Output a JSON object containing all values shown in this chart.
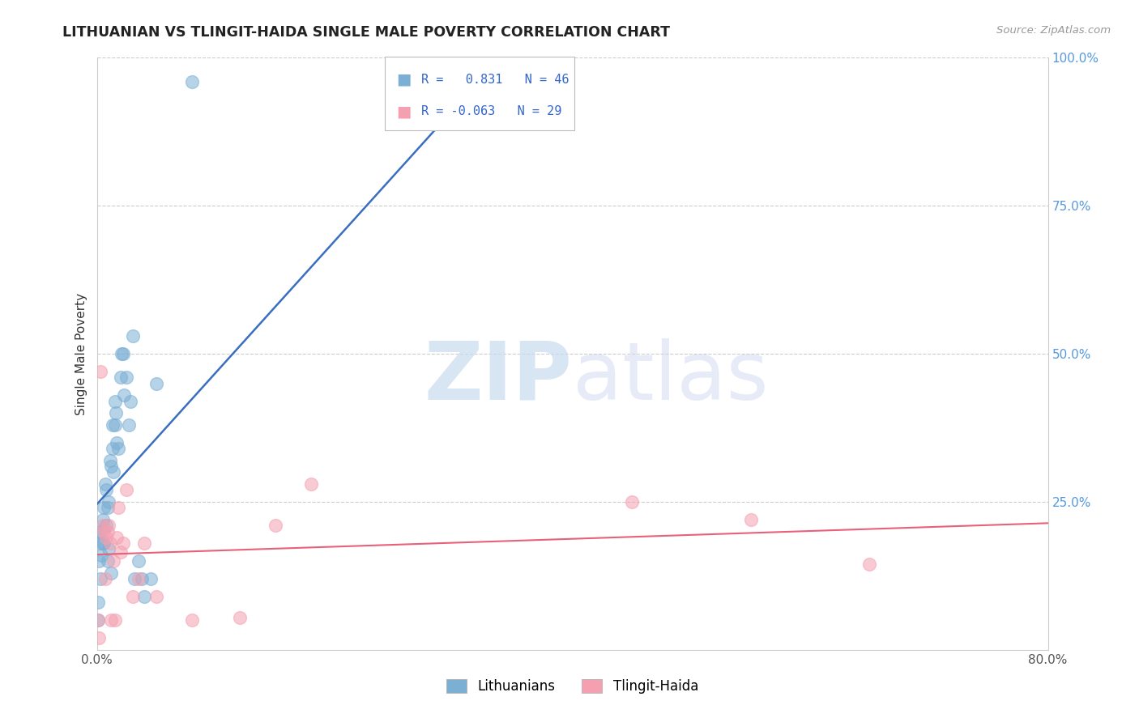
{
  "title": "LITHUANIAN VS TLINGIT-HAIDA SINGLE MALE POVERTY CORRELATION CHART",
  "source": "Source: ZipAtlas.com",
  "ylabel": "Single Male Poverty",
  "blue_R": 0.831,
  "blue_N": 46,
  "pink_R": -0.063,
  "pink_N": 29,
  "blue_color": "#7BAFD4",
  "pink_color": "#F4A0B0",
  "blue_line_color": "#3A6EC0",
  "pink_line_color": "#E8607A",
  "legend_label_blue": "Lithuanians",
  "legend_label_pink": "Tlingit-Haida",
  "xlim": [
    0.0,
    0.8
  ],
  "ylim": [
    0.0,
    1.0
  ],
  "xticks": [
    0.0,
    0.1,
    0.2,
    0.3,
    0.4,
    0.5,
    0.6,
    0.7,
    0.8
  ],
  "xticklabels": [
    "0.0%",
    "",
    "",
    "",
    "",
    "",
    "",
    "",
    "80.0%"
  ],
  "yticks_right": [
    0.25,
    0.5,
    0.75,
    1.0
  ],
  "yticklabels_right": [
    "25.0%",
    "50.0%",
    "75.0%",
    "100.0%"
  ],
  "blue_x": [
    0.001,
    0.001,
    0.002,
    0.002,
    0.003,
    0.003,
    0.004,
    0.004,
    0.005,
    0.005,
    0.006,
    0.006,
    0.007,
    0.008,
    0.008,
    0.009,
    0.009,
    0.01,
    0.01,
    0.011,
    0.012,
    0.012,
    0.013,
    0.013,
    0.014,
    0.015,
    0.015,
    0.016,
    0.017,
    0.018,
    0.02,
    0.021,
    0.022,
    0.023,
    0.025,
    0.027,
    0.028,
    0.03,
    0.032,
    0.035,
    0.038,
    0.04,
    0.045,
    0.05,
    0.08,
    0.38
  ],
  "blue_y": [
    0.05,
    0.08,
    0.15,
    0.2,
    0.12,
    0.18,
    0.16,
    0.2,
    0.18,
    0.22,
    0.18,
    0.24,
    0.28,
    0.21,
    0.27,
    0.15,
    0.24,
    0.17,
    0.25,
    0.32,
    0.13,
    0.31,
    0.34,
    0.38,
    0.3,
    0.38,
    0.42,
    0.4,
    0.35,
    0.34,
    0.46,
    0.5,
    0.5,
    0.43,
    0.46,
    0.38,
    0.42,
    0.53,
    0.12,
    0.15,
    0.12,
    0.09,
    0.12,
    0.45,
    0.96,
    0.98
  ],
  "pink_x": [
    0.001,
    0.002,
    0.003,
    0.005,
    0.006,
    0.007,
    0.008,
    0.009,
    0.01,
    0.011,
    0.012,
    0.014,
    0.015,
    0.017,
    0.018,
    0.02,
    0.022,
    0.025,
    0.03,
    0.035,
    0.04,
    0.05,
    0.08,
    0.12,
    0.15,
    0.18,
    0.45,
    0.55,
    0.65
  ],
  "pink_y": [
    0.05,
    0.02,
    0.47,
    0.21,
    0.2,
    0.12,
    0.19,
    0.2,
    0.21,
    0.18,
    0.05,
    0.15,
    0.05,
    0.19,
    0.24,
    0.165,
    0.18,
    0.27,
    0.09,
    0.12,
    0.18,
    0.09,
    0.05,
    0.055,
    0.21,
    0.28,
    0.25,
    0.22,
    0.145
  ]
}
